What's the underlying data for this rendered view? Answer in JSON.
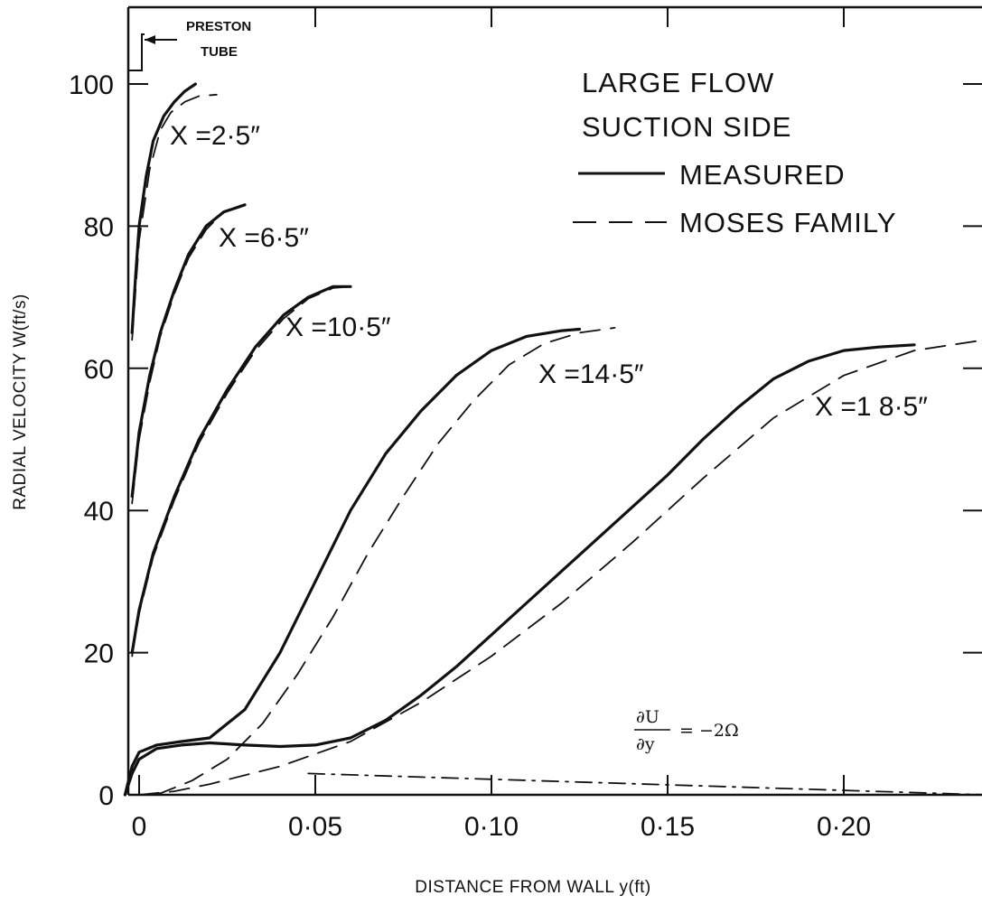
{
  "chart_data": {
    "type": "line",
    "title": "",
    "xlabel": "DISTANCE FROM WALL y(ft)",
    "ylabel": "RADIAL VELOCITY W(ft/s)",
    "xlim": [
      -0.005,
      0.24
    ],
    "ylim": [
      0,
      110
    ],
    "x_ticks": [
      0,
      0.05,
      0.1,
      0.15,
      0.2
    ],
    "x_tick_labels": [
      "0",
      "0·05",
      "0·10",
      "0·15",
      "0·20"
    ],
    "y_ticks": [
      0,
      20,
      40,
      60,
      80,
      100
    ],
    "y_tick_labels": [
      "0",
      "20",
      "40",
      "60",
      "80",
      "100"
    ],
    "legend": {
      "line1": "LARGE FLOW",
      "line2": "SUCTION SIDE",
      "entries": [
        {
          "label": "MEASURED",
          "style": "solid"
        },
        {
          "label": "MOSES FAMILY",
          "style": "dashed"
        }
      ],
      "placement": "top-right"
    },
    "annotations": {
      "preston_line1": "PRESTON",
      "preston_line2": "TUBE",
      "gradient_num": "∂U",
      "gradient_den": "∂y",
      "gradient_rhs": "= −2Ω"
    },
    "series": [
      {
        "name": "X =2·5″",
        "style": "solid",
        "x": [
          -0.002,
          -0.001,
          0.0,
          0.002,
          0.004,
          0.007,
          0.01,
          0.013,
          0.016
        ],
        "y": [
          65,
          73,
          80,
          87,
          92,
          95.5,
          97.5,
          99,
          100
        ]
      },
      {
        "name": "X =2·5″",
        "style": "dashed",
        "x": [
          -0.002,
          0.0,
          0.003,
          0.006,
          0.009,
          0.013,
          0.017,
          0.022
        ],
        "y": [
          64,
          78,
          88,
          93.5,
          96,
          97.5,
          98.3,
          98.5
        ]
      },
      {
        "name": "X =6·5″",
        "style": "solid",
        "x": [
          -0.002,
          0.0,
          0.003,
          0.006,
          0.01,
          0.014,
          0.019,
          0.024,
          0.03
        ],
        "y": [
          42,
          51,
          59,
          65,
          71,
          76,
          80,
          82,
          83
        ]
      },
      {
        "name": "X =6·5″",
        "style": "dashed",
        "x": [
          -0.002,
          0.0,
          0.003,
          0.006,
          0.01,
          0.014,
          0.019,
          0.024,
          0.03
        ],
        "y": [
          41,
          50,
          58,
          64.5,
          70.5,
          75.5,
          79.5,
          82,
          83
        ]
      },
      {
        "name": "X =10·5″",
        "style": "solid",
        "x": [
          -0.002,
          0.0,
          0.004,
          0.01,
          0.017,
          0.025,
          0.033,
          0.041,
          0.048,
          0.055,
          0.06
        ],
        "y": [
          20,
          26,
          34,
          42,
          50,
          57,
          63,
          67.5,
          70,
          71.5,
          71.5
        ]
      },
      {
        "name": "X =10·5″",
        "style": "dashed",
        "x": [
          -0.002,
          0.0,
          0.004,
          0.01,
          0.017,
          0.025,
          0.033,
          0.041,
          0.048,
          0.055,
          0.06
        ],
        "y": [
          19.5,
          25.5,
          33.5,
          41.5,
          49.5,
          56.5,
          62.5,
          67,
          69.8,
          71.3,
          71.5
        ]
      },
      {
        "name": "X =14·5″",
        "style": "solid",
        "x": [
          -0.004,
          -0.002,
          0.0,
          0.005,
          0.012,
          0.02,
          0.03,
          0.04,
          0.05,
          0.06,
          0.07,
          0.08,
          0.09,
          0.1,
          0.11,
          0.12,
          0.125
        ],
        "y": [
          0,
          4,
          6,
          7,
          7.5,
          8,
          12,
          20,
          30,
          40,
          48,
          54,
          59,
          62.5,
          64.5,
          65.3,
          65.5
        ]
      },
      {
        "name": "X =14·5″",
        "style": "dashed",
        "x": [
          0.005,
          0.015,
          0.025,
          0.035,
          0.045,
          0.055,
          0.065,
          0.075,
          0.085,
          0.095,
          0.105,
          0.115,
          0.125,
          0.135
        ],
        "y": [
          0,
          2,
          5,
          10,
          17,
          25,
          34,
          42,
          49.5,
          55.5,
          60.5,
          63.5,
          65,
          65.7
        ]
      },
      {
        "name": "X =18·5″",
        "style": "solid",
        "x": [
          -0.004,
          -0.002,
          0.0,
          0.005,
          0.012,
          0.02,
          0.03,
          0.04,
          0.05,
          0.06,
          0.07,
          0.08,
          0.09,
          0.1,
          0.11,
          0.12,
          0.13,
          0.14,
          0.15,
          0.16,
          0.17,
          0.18,
          0.19,
          0.2,
          0.21,
          0.22
        ],
        "y": [
          0,
          3,
          5,
          6.5,
          7,
          7.3,
          7,
          6.8,
          7,
          8,
          10.5,
          14,
          18,
          22.5,
          27,
          31.5,
          36,
          40.5,
          45,
          50,
          54.5,
          58.5,
          61,
          62.5,
          63,
          63.3
        ]
      },
      {
        "name": "X =18·5″",
        "style": "dashed",
        "x": [
          0.0,
          0.01,
          0.02,
          0.04,
          0.06,
          0.08,
          0.1,
          0.12,
          0.14,
          0.16,
          0.18,
          0.2,
          0.22,
          0.24
        ],
        "y": [
          0,
          0.5,
          1.5,
          4,
          7.5,
          13,
          19.5,
          27,
          35.5,
          44.5,
          53,
          59,
          62.5,
          64
        ]
      },
      {
        "name": "∂U/∂y = −2Ω",
        "style": "dashdot",
        "x": [
          0.048,
          0.24
        ],
        "y": [
          3,
          0
        ]
      }
    ],
    "curve_labels": [
      "X =2·5″",
      "X =6·5″",
      "X =10·5″",
      "X =14·5″",
      "X =1 8·5″"
    ]
  }
}
